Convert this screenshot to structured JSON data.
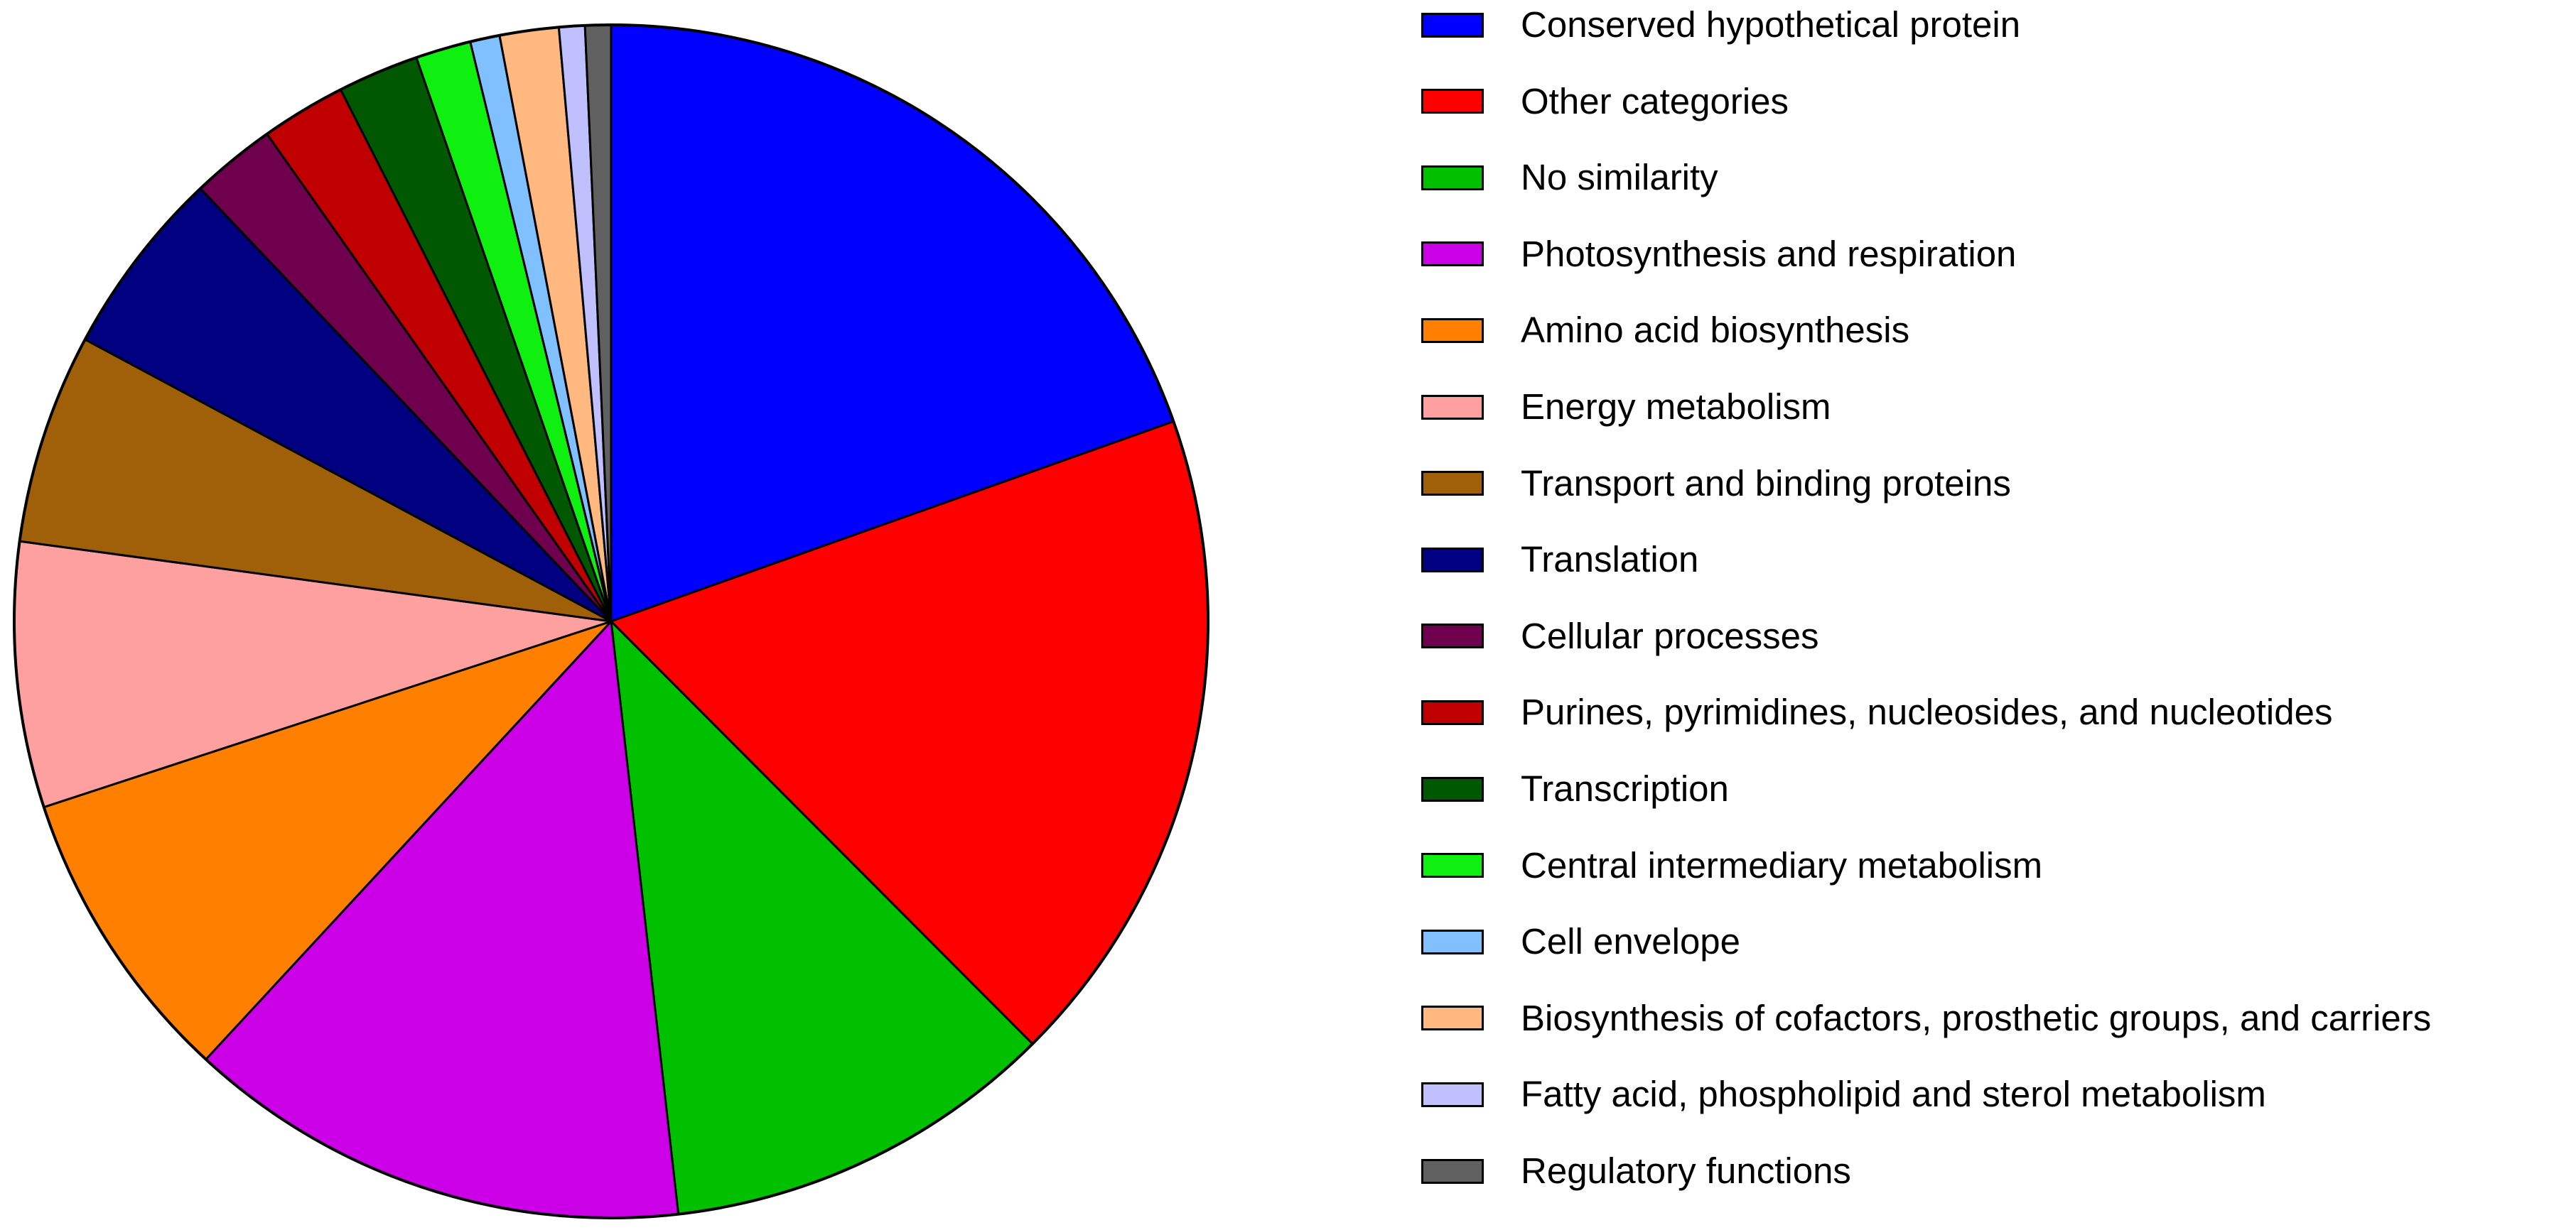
{
  "chart_data": {
    "type": "pie",
    "title": "",
    "legend": "right",
    "start": "12 o'clock",
    "direction": "clockwise",
    "slices": [
      {
        "label": "Conserved hypothetical protein",
        "value": 19.6,
        "color": "#0000ff"
      },
      {
        "label": "Other categories",
        "value": 18.0,
        "color": "#ff0000"
      },
      {
        "label": "No similarity",
        "value": 10.7,
        "color": "#00c000"
      },
      {
        "label": "Photosynthesis and respiration",
        "value": 13.7,
        "color": "#cc00e6"
      },
      {
        "label": "Amino acid biosynthesis",
        "value": 8.1,
        "color": "#ff8000"
      },
      {
        "label": "Energy metabolism",
        "value": 7.2,
        "color": "#ffa0a0"
      },
      {
        "label": "Transport and binding proteins",
        "value": 5.7,
        "color": "#a0600a"
      },
      {
        "label": "Translation",
        "value": 5.1,
        "color": "#000080"
      },
      {
        "label": "Cellular processes",
        "value": 2.3,
        "color": "#6e004e"
      },
      {
        "label": "Purines, pyrimidines, nucleosides, and nucleotides",
        "value": 2.3,
        "color": "#c00000"
      },
      {
        "label": "Transcription",
        "value": 2.2,
        "color": "#005800"
      },
      {
        "label": "Central intermediary metabolism",
        "value": 1.5,
        "color": "#10f010"
      },
      {
        "label": "Cell envelope",
        "value": 0.8,
        "color": "#80c0ff"
      },
      {
        "label": "Biosynthesis of cofactors, prosthetic groups, and carriers",
        "value": 1.6,
        "color": "#ffb880"
      },
      {
        "label": "Fatty acid, phospholipid and sterol metabolism",
        "value": 0.7,
        "color": "#c0c0ff"
      },
      {
        "label": "Regulatory functions",
        "value": 0.7,
        "color": "#606060"
      }
    ],
    "legend_order": [
      "Conserved hypothetical protein",
      "Other categories",
      "No similarity",
      "Photosynthesis and respiration",
      "Amino acid biosynthesis",
      "Energy metabolism",
      "Transport and binding proteins",
      "Translation",
      "Cellular processes",
      "Purines, pyrimidines, nucleosides, and nucleotides",
      "Transcription",
      "Central intermediary metabolism",
      "Cell envelope",
      "Biosynthesis of cofactors, prosthetic groups, and carriers",
      "Fatty acid, phospholipid and sterol metabolism",
      "Regulatory functions"
    ]
  }
}
